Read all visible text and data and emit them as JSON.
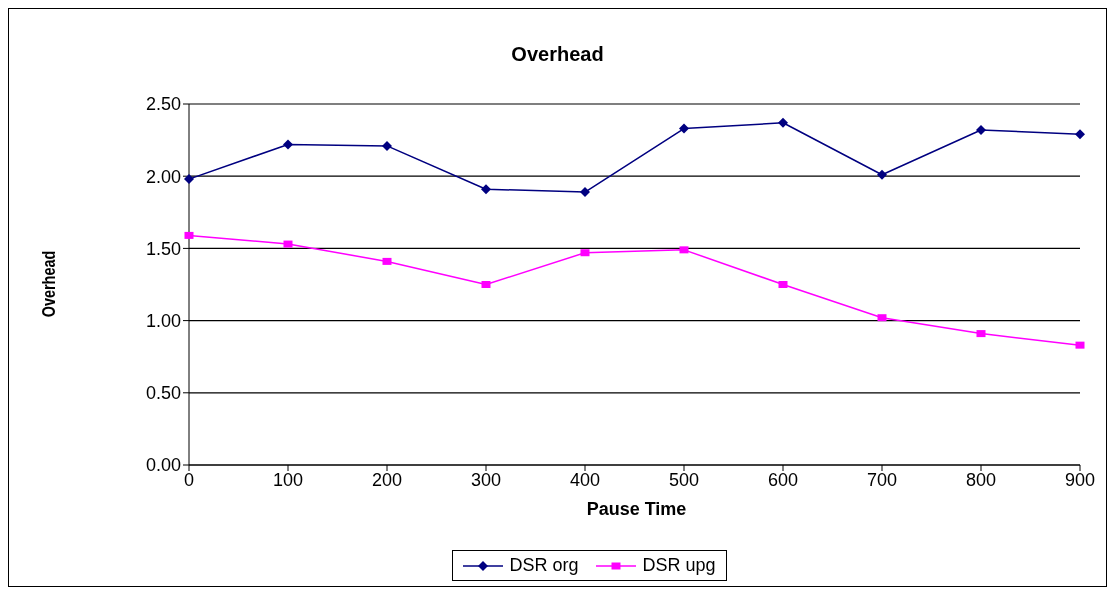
{
  "chart_data": {
    "type": "line",
    "title": "Overhead",
    "xlabel": "Pause Time",
    "ylabel": "Overhead",
    "categories": [
      "0",
      "100",
      "200",
      "300",
      "400",
      "500",
      "600",
      "700",
      "800",
      "900"
    ],
    "series": [
      {
        "name": "DSR org",
        "color": "#000080",
        "marker": "diamond",
        "values": [
          1.98,
          2.22,
          2.21,
          1.91,
          1.89,
          2.33,
          2.37,
          2.01,
          2.32,
          2.29
        ]
      },
      {
        "name": "DSR upg",
        "color": "#ff00ff",
        "marker": "square",
        "values": [
          1.59,
          1.53,
          1.41,
          1.25,
          1.47,
          1.49,
          1.25,
          1.02,
          0.91,
          0.83
        ]
      }
    ],
    "ylim": [
      0,
      2.5
    ],
    "yticks": [
      {
        "value": 0,
        "label": "0.00"
      },
      {
        "value": 0.5,
        "label": "0.50"
      },
      {
        "value": 1,
        "label": "1.00"
      },
      {
        "value": 1.5,
        "label": "1.50"
      },
      {
        "value": 2,
        "label": "2.00"
      },
      {
        "value": 2.5,
        "label": "2.50"
      }
    ],
    "grid": "y",
    "legend": "bottom"
  }
}
